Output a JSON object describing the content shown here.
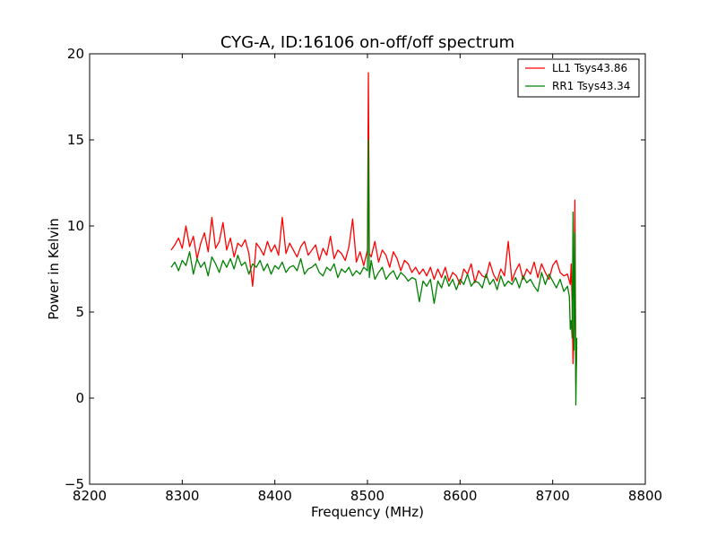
{
  "chart_data": {
    "type": "line",
    "title": "CYG-A, ID:16106 on-off/off spectrum",
    "xlabel": "Frequency (MHz)",
    "ylabel": "Power in Kelvin",
    "xlim": [
      8200,
      8800
    ],
    "ylim": [
      -5,
      20
    ],
    "xticks": [
      8200,
      8300,
      8400,
      8500,
      8600,
      8700,
      8800
    ],
    "yticks": [
      -5,
      0,
      5,
      10,
      15,
      20
    ],
    "grid": false,
    "legend_position": "top-right",
    "series": [
      {
        "name": "LL1 Tsys43.86",
        "color": "#ff0000",
        "x": [
          8288,
          8292,
          8296,
          8300,
          8304,
          8308,
          8312,
          8316,
          8320,
          8324,
          8328,
          8332,
          8336,
          8340,
          8344,
          8348,
          8352,
          8356,
          8360,
          8364,
          8368,
          8372,
          8376,
          8380,
          8384,
          8388,
          8392,
          8396,
          8400,
          8404,
          8408,
          8412,
          8416,
          8420,
          8424,
          8428,
          8432,
          8436,
          8440,
          8444,
          8448,
          8452,
          8456,
          8460,
          8464,
          8468,
          8472,
          8476,
          8480,
          8484,
          8488,
          8492,
          8496,
          8500,
          8501,
          8502,
          8504,
          8508,
          8512,
          8516,
          8520,
          8524,
          8528,
          8532,
          8536,
          8540,
          8544,
          8548,
          8552,
          8556,
          8560,
          8564,
          8568,
          8572,
          8576,
          8580,
          8584,
          8588,
          8592,
          8596,
          8600,
          8604,
          8608,
          8612,
          8616,
          8620,
          8624,
          8628,
          8632,
          8636,
          8640,
          8644,
          8648,
          8652,
          8656,
          8660,
          8664,
          8668,
          8672,
          8676,
          8680,
          8684,
          8688,
          8692,
          8696,
          8700,
          8704,
          8708,
          8712,
          8716,
          8718,
          8719,
          8720,
          8721,
          8722,
          8723,
          8724,
          8725,
          8726
        ],
        "y": [
          8.6,
          8.9,
          9.3,
          8.7,
          10.0,
          8.8,
          9.4,
          8.1,
          9.0,
          9.6,
          8.5,
          10.5,
          8.7,
          9.1,
          10.2,
          8.6,
          9.3,
          8.2,
          9.0,
          8.8,
          9.2,
          8.4,
          6.5,
          9.0,
          8.7,
          8.3,
          9.1,
          8.5,
          8.9,
          8.3,
          10.5,
          8.4,
          9.0,
          8.6,
          8.2,
          8.8,
          9.1,
          8.3,
          8.6,
          8.9,
          8.0,
          8.7,
          8.3,
          9.4,
          8.1,
          8.6,
          8.4,
          8.0,
          8.8,
          10.4,
          7.9,
          8.5,
          7.7,
          8.6,
          18.9,
          8.4,
          8.2,
          9.1,
          7.9,
          8.6,
          8.3,
          7.6,
          8.5,
          8.1,
          7.4,
          8.0,
          7.8,
          7.3,
          7.6,
          7.2,
          7.5,
          7.1,
          7.6,
          6.9,
          7.5,
          7.0,
          7.6,
          6.8,
          7.3,
          7.1,
          6.6,
          7.5,
          7.2,
          7.8,
          6.7,
          7.4,
          7.1,
          7.0,
          7.9,
          7.2,
          6.8,
          7.5,
          7.1,
          9.1,
          6.8,
          7.4,
          7.8,
          6.9,
          7.5,
          7.2,
          7.9,
          7.0,
          7.8,
          7.3,
          6.9,
          7.7,
          8.0,
          7.3,
          7.1,
          7.2,
          6.8,
          6.6,
          7.8,
          5.5,
          2.0,
          4.0,
          11.5,
          0.8,
          3.0
        ]
      },
      {
        "name": "RR1 Tsys43.34",
        "color": "#008000",
        "x": [
          8288,
          8292,
          8296,
          8300,
          8304,
          8308,
          8312,
          8316,
          8320,
          8324,
          8328,
          8332,
          8336,
          8340,
          8344,
          8348,
          8352,
          8356,
          8360,
          8364,
          8368,
          8372,
          8376,
          8380,
          8384,
          8388,
          8392,
          8396,
          8400,
          8404,
          8408,
          8412,
          8416,
          8420,
          8424,
          8428,
          8432,
          8436,
          8440,
          8444,
          8448,
          8452,
          8456,
          8460,
          8464,
          8468,
          8472,
          8476,
          8480,
          8484,
          8488,
          8492,
          8496,
          8500,
          8501,
          8502,
          8504,
          8508,
          8512,
          8516,
          8520,
          8524,
          8528,
          8532,
          8536,
          8540,
          8544,
          8548,
          8552,
          8556,
          8560,
          8564,
          8568,
          8572,
          8576,
          8580,
          8584,
          8588,
          8592,
          8596,
          8600,
          8604,
          8608,
          8612,
          8616,
          8620,
          8624,
          8628,
          8632,
          8636,
          8640,
          8644,
          8648,
          8652,
          8656,
          8660,
          8664,
          8668,
          8672,
          8676,
          8680,
          8684,
          8688,
          8692,
          8696,
          8700,
          8704,
          8708,
          8712,
          8716,
          8718,
          8719,
          8720,
          8721,
          8722,
          8723,
          8724,
          8725,
          8726
        ],
        "y": [
          7.6,
          7.9,
          7.4,
          8.0,
          7.7,
          8.5,
          7.2,
          8.1,
          7.6,
          7.9,
          7.1,
          8.2,
          7.8,
          7.3,
          8.0,
          7.6,
          8.1,
          7.5,
          8.3,
          7.7,
          7.9,
          7.2,
          7.8,
          7.6,
          8.0,
          7.4,
          7.8,
          7.2,
          7.7,
          7.5,
          7.9,
          7.3,
          7.6,
          7.7,
          7.4,
          8.1,
          7.2,
          7.5,
          7.6,
          7.8,
          7.3,
          7.1,
          7.6,
          7.4,
          7.8,
          7.0,
          7.5,
          7.3,
          7.6,
          7.1,
          7.4,
          7.2,
          7.6,
          7.4,
          15.0,
          7.0,
          8.0,
          6.9,
          7.3,
          7.6,
          6.9,
          7.2,
          7.4,
          6.9,
          7.3,
          7.1,
          6.8,
          7.0,
          6.9,
          5.6,
          6.8,
          6.5,
          6.9,
          5.5,
          6.8,
          6.4,
          7.1,
          6.5,
          6.9,
          6.3,
          6.9,
          6.6,
          7.2,
          6.5,
          6.8,
          6.7,
          6.4,
          7.2,
          6.6,
          6.9,
          6.3,
          7.1,
          6.5,
          6.8,
          6.6,
          7.0,
          6.4,
          7.1,
          6.7,
          6.9,
          6.5,
          6.2,
          7.3,
          6.6,
          7.2,
          6.8,
          6.4,
          6.9,
          6.2,
          6.5,
          5.9,
          4.0,
          4.5,
          3.5,
          10.8,
          2.8,
          9.6,
          -0.4,
          3.5
        ]
      }
    ]
  }
}
